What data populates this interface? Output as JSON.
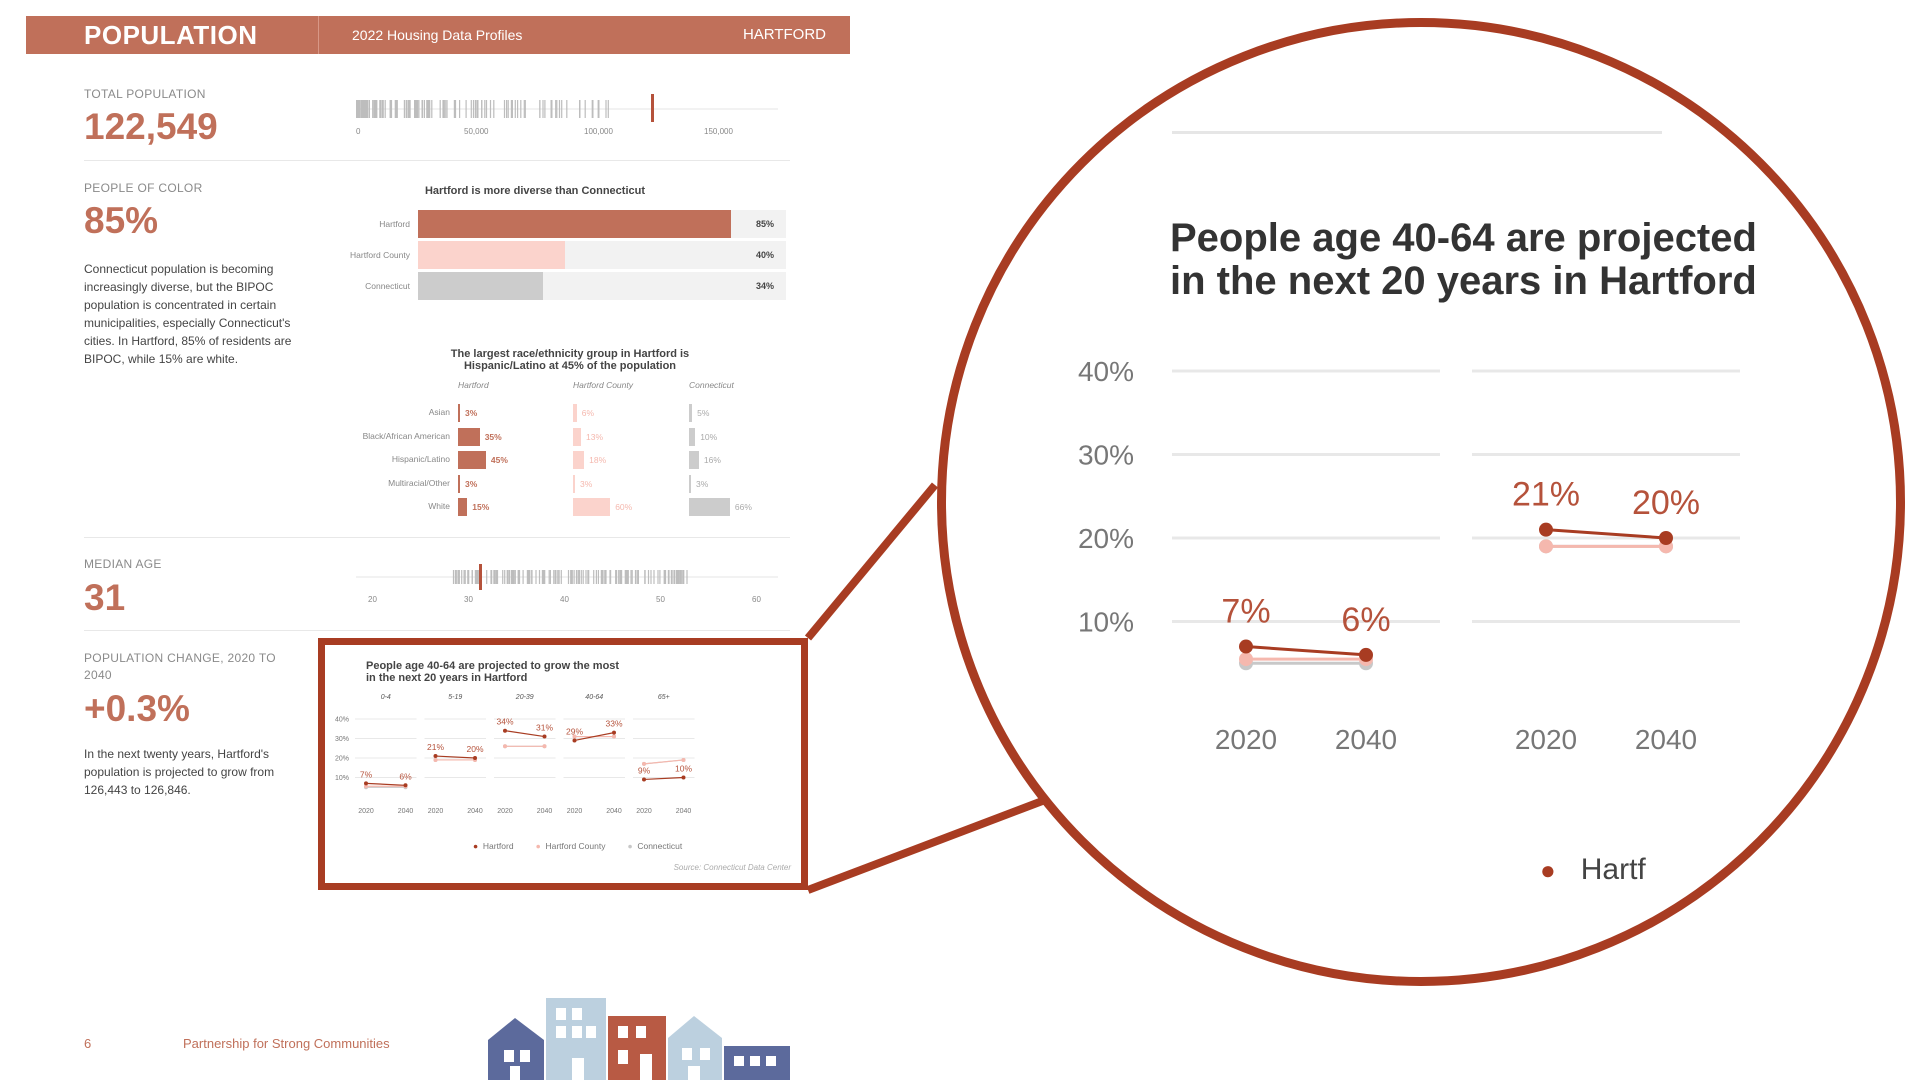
{
  "header": {
    "section": "POPULATION",
    "subtitle": "2022 Housing Data Profiles",
    "town": "HARTFORD"
  },
  "total_population": {
    "label": "TOTAL POPULATION",
    "value": "122,549",
    "axis": [
      "0",
      "50,000",
      "100,000",
      "150,000"
    ]
  },
  "people_of_color": {
    "label": "PEOPLE OF COLOR",
    "value": "85%",
    "description": "Connecticut population is becoming increasingly diverse, but the BIPOC population is concentrated in certain municipalities, especially Connecticut's cities. In Hartford, 85% of residents are BIPOC, while 15% are white."
  },
  "diversity_chart": {
    "title": "Hartford is more diverse than Connecticut",
    "rows": [
      {
        "label": "Hartford",
        "value": "85%"
      },
      {
        "label": "Hartford County",
        "value": "40%"
      },
      {
        "label": "Connecticut",
        "value": "34%"
      }
    ]
  },
  "race_chart": {
    "title_line1": "The largest race/ethnicity group in Hartford is",
    "title_line2": "Hispanic/Latino at 45% of the population",
    "columns": [
      "Hartford",
      "Hartford County",
      "Connecticut"
    ],
    "categories": [
      "Asian",
      "Black/African American",
      "Hispanic/Latino",
      "Multiracial/Other",
      "White"
    ],
    "hartford": [
      "3%",
      "35%",
      "45%",
      "3%",
      "15%"
    ],
    "county": [
      "6%",
      "13%",
      "18%",
      "3%",
      "60%"
    ],
    "connecticut": [
      "5%",
      "10%",
      "16%",
      "3%",
      "66%"
    ]
  },
  "median_age": {
    "label": "MEDIAN AGE",
    "value": "31",
    "axis": [
      "20",
      "30",
      "40",
      "50",
      "60"
    ]
  },
  "population_change": {
    "label_line1": "POPULATION CHANGE, 2020 TO",
    "label_line2": "2040",
    "value": "+0.3%",
    "description": "In the next twenty years, Hartford's population is projected to grow from 126,443 to 126,846."
  },
  "age_chart": {
    "title_line1": "People age 40-64 are projected to grow the most",
    "title_line2": "in the next 20 years in Hartford",
    "legend": [
      "Hartford",
      "Hartford County",
      "Connecticut"
    ],
    "source": "Source: Connecticut Data Center"
  },
  "zoom": {
    "title_line1": "People age 40-64 are projected",
    "title_line2": "in the next 20 years in Hartford",
    "legend_partial": "Hartf"
  },
  "chart_data": {
    "type": "line",
    "facets": [
      "0-4",
      "5-19",
      "20-39",
      "40-64",
      "65+"
    ],
    "x": [
      "2020",
      "2040"
    ],
    "yticks": [
      "40%",
      "30%",
      "20%",
      "10%"
    ],
    "ylim": [
      0,
      40
    ],
    "series": [
      {
        "name": "Hartford",
        "values": [
          [
            7,
            6
          ],
          [
            21,
            20
          ],
          [
            34,
            31
          ],
          [
            29,
            33
          ],
          [
            9,
            10
          ]
        ],
        "labels": [
          [
            "7%",
            "6%"
          ],
          [
            "21%",
            "20%"
          ],
          [
            "34%",
            "31%"
          ],
          [
            "29%",
            "33%"
          ],
          [
            "9%",
            "10%"
          ]
        ]
      },
      {
        "name": "Hartford County",
        "values": [
          [
            5.5,
            5.5
          ],
          [
            19,
            19
          ],
          [
            26,
            26
          ],
          [
            31,
            31
          ],
          [
            17,
            19
          ]
        ]
      },
      {
        "name": "Connecticut",
        "values": [
          [
            5,
            5
          ],
          [
            19,
            19
          ],
          [
            26,
            26
          ],
          [
            31,
            31
          ],
          [
            17,
            19
          ]
        ]
      }
    ]
  },
  "colors": {
    "brand": "#c0705a",
    "dark": "#a83c22",
    "county": "#f5b8ae",
    "ct": "#c8c8c8"
  },
  "footer": {
    "page": "6",
    "org": "Partnership for Strong Communities"
  }
}
